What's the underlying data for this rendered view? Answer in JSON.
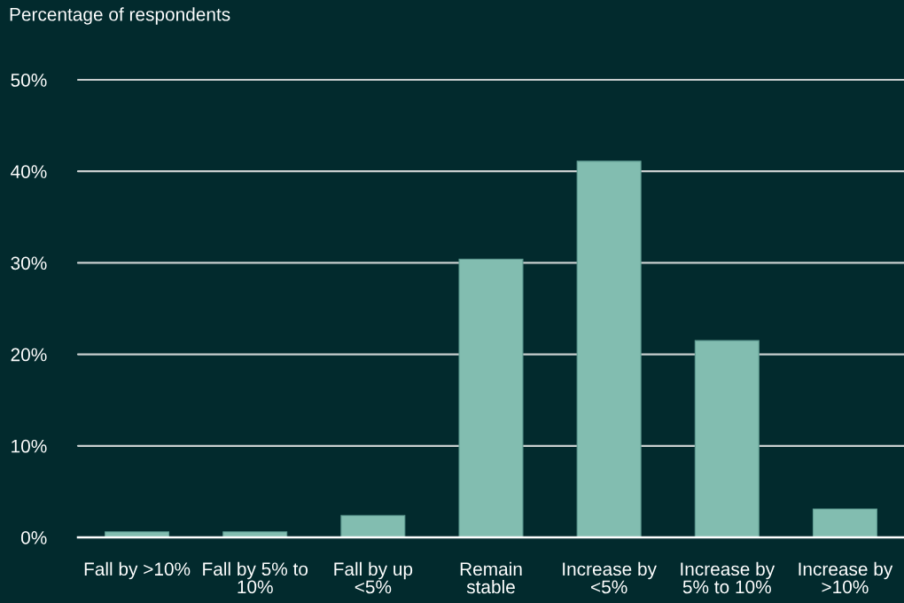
{
  "chart_data": {
    "type": "bar",
    "ylabel": "Percentage of respondents",
    "categories": [
      "Fall by >10%",
      "Fall by 5% to 10%",
      "Fall by up <5%",
      "Remain stable",
      "Increase by <5%",
      "Increase by 5% to 10%",
      "Increase by >10%"
    ],
    "values": [
      0.6,
      0.6,
      2.4,
      30.4,
      41.1,
      21.5,
      3.1
    ],
    "color": "#82bdb0",
    "ylim": [
      0,
      50
    ],
    "yticks": [
      {
        "value": 0,
        "label": "0%"
      },
      {
        "value": 10,
        "label": "10%"
      },
      {
        "value": 20,
        "label": "20%"
      },
      {
        "value": 30,
        "label": "30%"
      },
      {
        "value": 40,
        "label": "40%"
      },
      {
        "value": 50,
        "label": "50%"
      }
    ],
    "grid": "y"
  }
}
